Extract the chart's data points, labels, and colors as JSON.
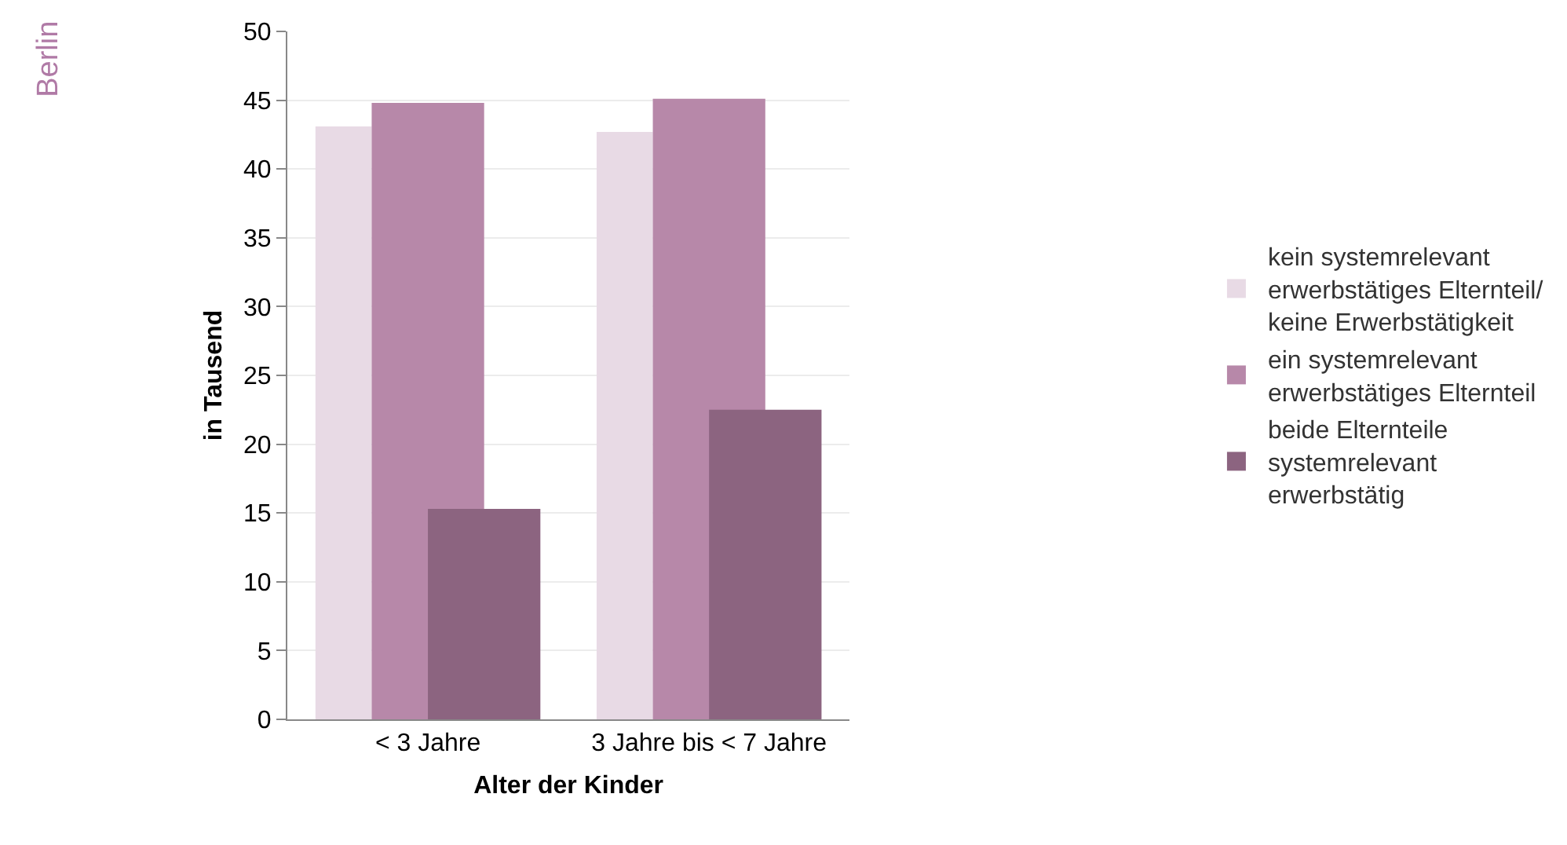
{
  "chart_data": {
    "type": "bar",
    "categories": [
      "< 3 Jahre",
      "3 Jahre bis < 7 Jahre"
    ],
    "series": [
      {
        "name": "kein systemrelevant erwerbstätiges Elternteil/ keine Erwerbstätigkeit",
        "color": "#e8dae5",
        "values": [
          43.1,
          42.7
        ]
      },
      {
        "name": "ein systemrelevant erwerbstätiges Elternteil",
        "color": "#b788a9",
        "values": [
          44.8,
          45.1
        ]
      },
      {
        "name": "beide Elternteile systemrelevant erwerbstätig",
        "color": "#8c6480",
        "values": [
          15.3,
          22.5
        ]
      }
    ],
    "xlabel": "Alter der Kinder",
    "ylabel": "in Tausend",
    "annotations": [
      "Berlin"
    ],
    "ylim": [
      0,
      50
    ],
    "yticks": [
      0,
      5,
      10,
      15,
      20,
      25,
      30,
      35,
      40,
      45,
      50
    ],
    "grid": "y",
    "legend": "right"
  }
}
